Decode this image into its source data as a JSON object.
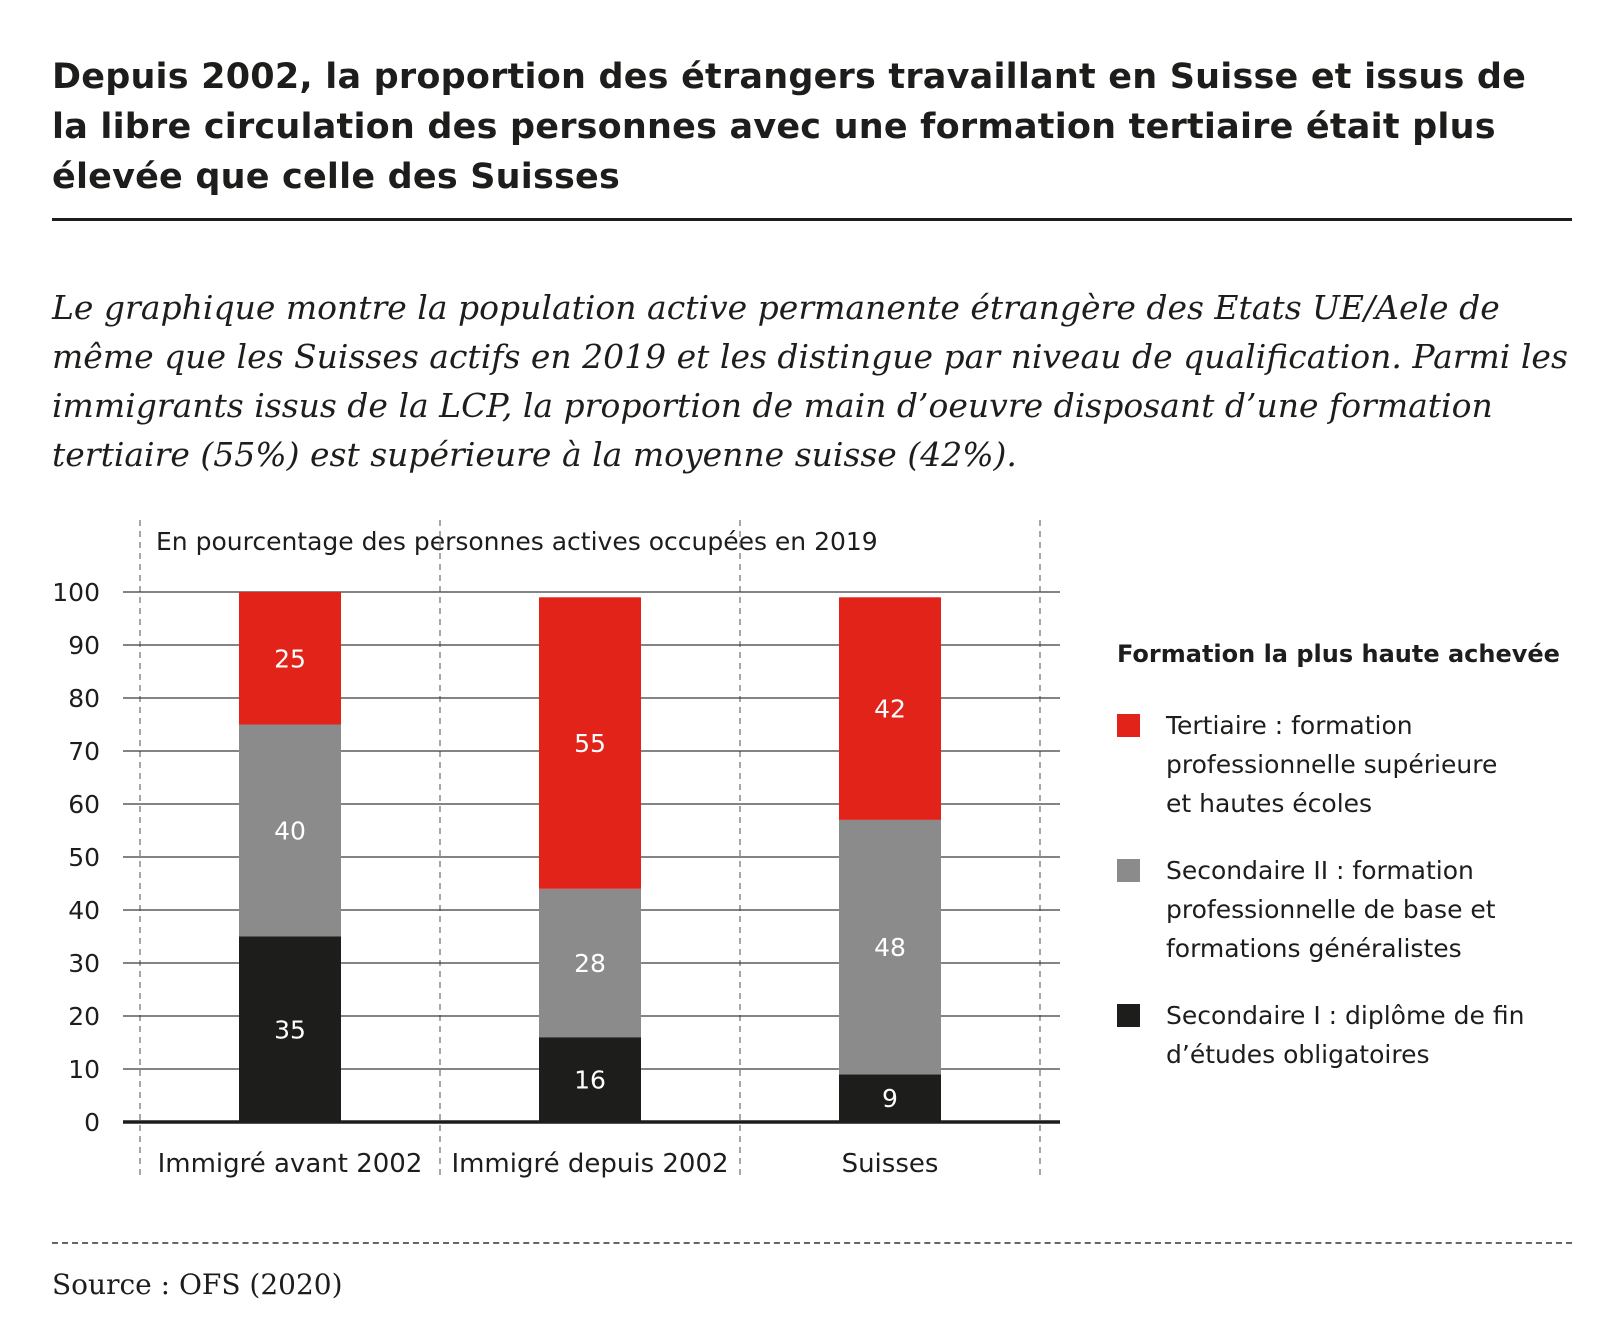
{
  "title": "Depuis 2002, la proportion des étrangers travaillant en Suisse et issus de la libre circulation des personnes avec une formation tertiaire était plus élevée que celle des Suisses",
  "subtitle": "Le graphique montre la population active permanente étrangère des Etats UE/Aele de même que les Suisses actifs en 2019 et les distingue par niveau de qualification. Parmi les immigrants issus de la LCP, la proportion de main d’oeuvre disposant d’une formation tertiaire (55%) est supérieure à la moyenne suisse (42%).",
  "source": "Source : OFS (2020)",
  "legend": {
    "title": "Formation la plus haute achevée",
    "items": [
      {
        "label": "Tertiaire : formation professionnelle supérieure et hautes écoles",
        "color": "#e2231a"
      },
      {
        "label": "Secondaire II : formation professionnelle de base et formations généralistes",
        "color": "#8c8b8b"
      },
      {
        "label": "Secondaire I : diplôme de fin d’études obligatoires",
        "color": "#1d1d1b"
      }
    ]
  },
  "chart_data": {
    "type": "bar",
    "stacked": true,
    "title": "En pourcentage des personnes actives occupées en 2019",
    "xlabel": "",
    "ylabel": "",
    "ylim": [
      0,
      100
    ],
    "yticks": [
      0,
      10,
      20,
      30,
      40,
      50,
      60,
      70,
      80,
      90,
      100
    ],
    "grid": true,
    "legend_position": "right",
    "categories": [
      "Immigré avant 2002",
      "Immigré depuis 2002",
      "Suisses"
    ],
    "series": [
      {
        "name": "Secondaire I : diplôme de fin d’études obligatoires",
        "color": "#1d1d1b",
        "values": [
          35,
          16,
          9
        ]
      },
      {
        "name": "Secondaire II : formation professionnelle de base et formations généralistes",
        "color": "#8c8b8b",
        "values": [
          40,
          28,
          48
        ]
      },
      {
        "name": "Tertiaire : formation professionnelle supérieure et hautes écoles",
        "color": "#e2231a",
        "values": [
          25,
          55,
          42
        ]
      }
    ]
  }
}
